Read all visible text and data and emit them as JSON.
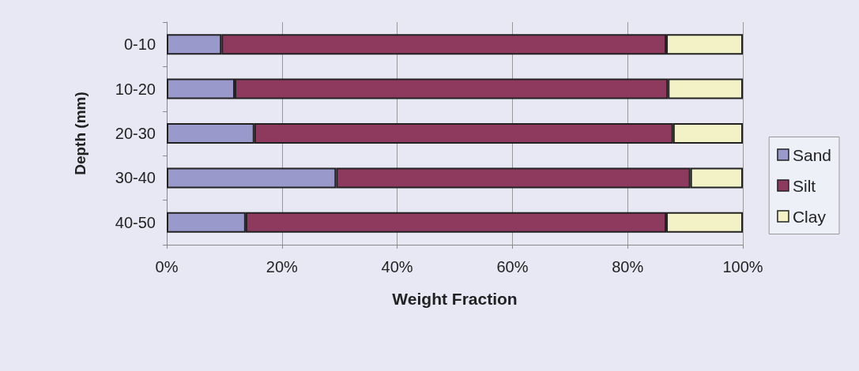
{
  "chart_data": {
    "type": "bar",
    "orientation": "horizontal",
    "stacked": true,
    "xlabel": "Weight Fraction",
    "ylabel": "Depth (mm)",
    "categories": [
      "0-10",
      "10-20",
      "20-30",
      "30-40",
      "40-50"
    ],
    "series": [
      {
        "name": "Sand",
        "color": "#9999cc",
        "values": [
          9.5,
          11.8,
          15.2,
          29.4,
          13.7
        ]
      },
      {
        "name": "Silt",
        "color": "#8e3a5e",
        "values": [
          77.2,
          75.2,
          72.7,
          61.5,
          73.0
        ]
      },
      {
        "name": "Clay",
        "color": "#f2f2c6",
        "values": [
          13.3,
          13.0,
          12.1,
          9.1,
          13.3
        ]
      }
    ],
    "xlim": [
      0,
      100
    ],
    "xticks": [
      {
        "value": 0,
        "label": "0%"
      },
      {
        "value": 20,
        "label": "20%"
      },
      {
        "value": 40,
        "label": "40%"
      },
      {
        "value": 60,
        "label": "60%"
      },
      {
        "value": 80,
        "label": "80%"
      },
      {
        "value": 100,
        "label": "100%"
      }
    ],
    "grid": "x",
    "legend": "right"
  }
}
